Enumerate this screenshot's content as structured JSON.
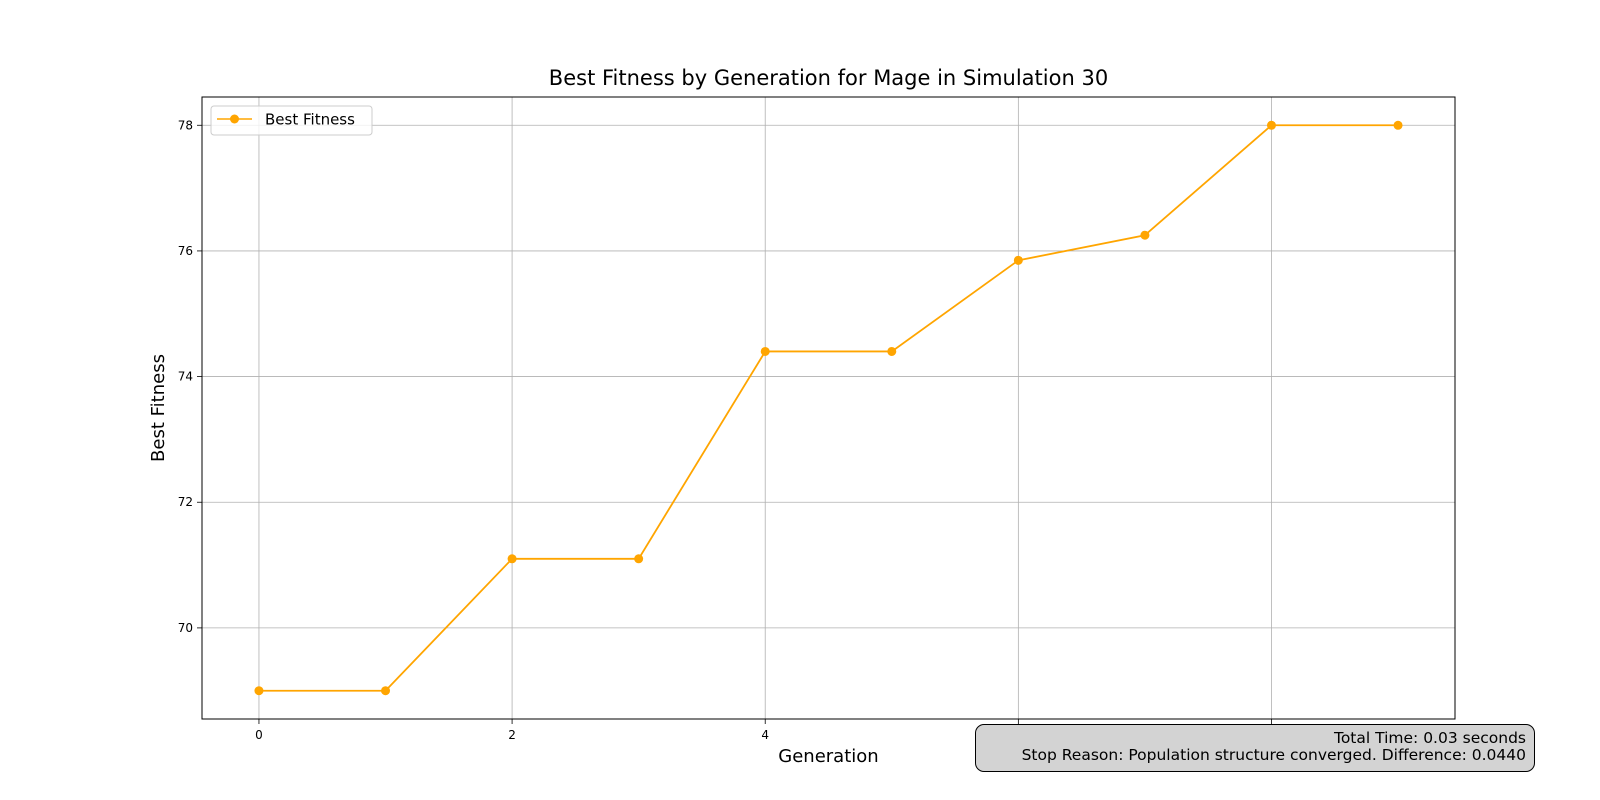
{
  "chart_data": {
    "type": "line",
    "title": "Best Fitness by Generation for Mage in Simulation 30",
    "xlabel": "Generation",
    "ylabel": "Best Fitness",
    "x": [
      0,
      1,
      2,
      3,
      4,
      5,
      6,
      7,
      8,
      9
    ],
    "series": [
      {
        "name": "Best Fitness",
        "color": "#ffa500",
        "marker": "circle",
        "values": [
          69.0,
          69.0,
          71.1,
          71.1,
          74.4,
          74.4,
          75.85,
          76.25,
          78.0,
          78.0
        ]
      }
    ],
    "xlim": [
      -0.45,
      9.45
    ],
    "ylim": [
      68.55,
      78.45
    ],
    "x_ticks": [
      0,
      2,
      4,
      6,
      8
    ],
    "x_tick_labels": [
      "0",
      "2",
      "4",
      "",
      ""
    ],
    "y_ticks": [
      70,
      72,
      74,
      76,
      78
    ],
    "y_tick_labels": [
      "70",
      "72",
      "74",
      "76",
      "78"
    ],
    "grid": true,
    "legend_position": "upper-left"
  },
  "info_box": {
    "total_time": "Total Time: 0.03 seconds",
    "stop_reason": "Stop Reason: Population structure converged. Difference: 0.0440"
  }
}
